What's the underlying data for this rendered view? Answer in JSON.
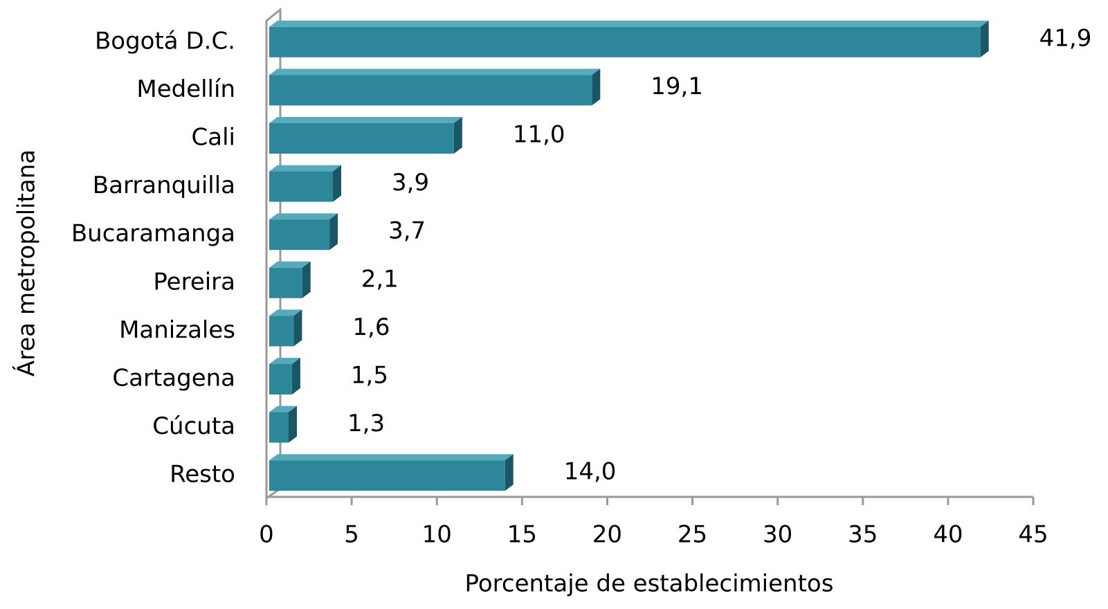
{
  "chart_data": {
    "type": "bar",
    "orientation": "horizontal",
    "x_label": "Porcentaje de establecimientos",
    "y_label": "Área metropolitana",
    "categories": [
      "Bogotá D.C.",
      "Medellín",
      "Cali",
      "Barranquilla",
      "Bucaramanga",
      "Pereira",
      "Manizales",
      "Cartagena",
      "Cúcuta",
      "Resto"
    ],
    "values": [
      41.9,
      19.1,
      11.0,
      3.9,
      3.7,
      2.1,
      1.6,
      1.5,
      1.3,
      14.0
    ],
    "value_labels": [
      "41,9",
      "19,1",
      "11,0",
      "3,9",
      "3,7",
      "2,1",
      "1,6",
      "1,5",
      "1,3",
      "14,0"
    ],
    "color": "#2e869a",
    "xlim": [
      0,
      45
    ],
    "xticks": [
      0,
      5,
      10,
      15,
      20,
      25,
      30,
      35,
      40,
      45
    ]
  }
}
